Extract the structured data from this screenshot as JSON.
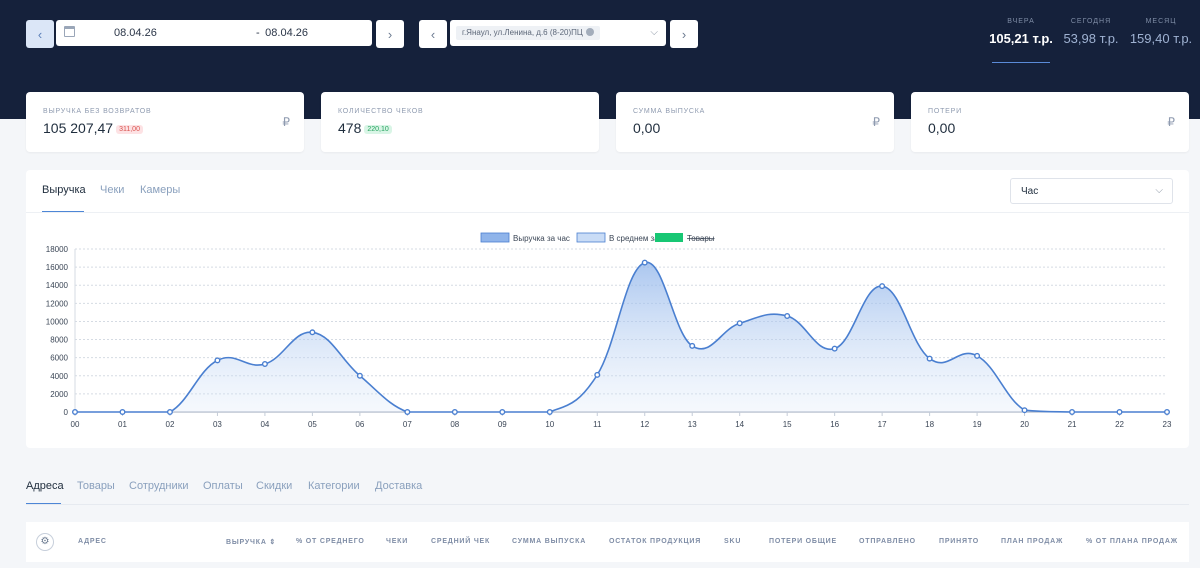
{
  "toolbar": {
    "date_from": "08.04.26",
    "date_sep": "-",
    "date_to": "08.04.26",
    "shop_chip": "г.Янаул, ул.Ленина, д.6 (8-20)ПЦ"
  },
  "stats": [
    {
      "label": "ВЧЕРА",
      "value": "105,21 т.р.",
      "selected": true
    },
    {
      "label": "СЕГОДНЯ",
      "value": "53,98 т.р."
    },
    {
      "label": "МЕСЯЦ",
      "value": "159,40 т.р."
    }
  ],
  "cards": [
    {
      "label": "ВЫРУЧКА БЕЗ ВОЗВРАТОВ",
      "value": "105 207,47",
      "badge": "311,00",
      "badge_color": "red",
      "currency": "₽"
    },
    {
      "label": "КОЛИЧЕСТВО ЧЕКОВ",
      "value": "478",
      "badge": "220,10",
      "badge_color": "green"
    },
    {
      "label": "СУММА ВЫПУСКА",
      "value": "0,00",
      "currency": "₽"
    },
    {
      "label": "ПОТЕРИ",
      "value": "0,00",
      "currency": "₽"
    }
  ],
  "chart_tabs": [
    "Выручка",
    "Чеки",
    "Камеры"
  ],
  "chart_tab_active": "Выручка",
  "period_select": "Час",
  "chart_data": {
    "type": "area",
    "categories": [
      "00",
      "01",
      "02",
      "03",
      "04",
      "05",
      "06",
      "07",
      "08",
      "09",
      "10",
      "11",
      "12",
      "13",
      "14",
      "15",
      "16",
      "17",
      "18",
      "19",
      "20",
      "21",
      "22",
      "23"
    ],
    "series": [
      {
        "name": "Выручка за час",
        "values": [
          0,
          0,
          0,
          5700,
          5300,
          8800,
          4000,
          0,
          0,
          0,
          0,
          4100,
          16500,
          7300,
          9800,
          10600,
          7000,
          13900,
          5900,
          6200,
          200,
          0,
          0,
          0
        ],
        "color": "#4a7fd0"
      }
    ],
    "legend": [
      {
        "name": "Выручка за час",
        "color": "#8fb4ea"
      },
      {
        "name": "В среднем за час",
        "color": "#c9dcf6"
      },
      {
        "name": "Товары",
        "color": "#18c774",
        "hidden": true
      }
    ],
    "legend_position": "top",
    "y_ticks": [
      "0",
      "2000",
      "4000",
      "6000",
      "8000",
      "10000",
      "12000",
      "14000",
      "16000",
      "18000"
    ],
    "ylim": [
      0,
      18000
    ],
    "grid": true
  },
  "table_tabs": [
    "Адреса",
    "Товары",
    "Сотрудники",
    "Оплаты",
    "Скидки",
    "Категории",
    "Доставка"
  ],
  "table_tab_active": "Адреса",
  "table_headers": [
    "АДРЕС",
    "ВЫРУЧКА ⇕",
    "% ОТ СРЕДНЕГО",
    "ЧЕКИ",
    "СРЕДНИЙ ЧЕК",
    "СУММА ВЫПУСКА",
    "ОСТАТОК ПРОДУКЦИЯ",
    "SKU",
    "ПОТЕРИ ОБЩИЕ",
    "ОТПРАВЛЕНО",
    "ПРИНЯТО",
    "ПЛАН ПРОДАЖ",
    "% ОТ ПЛАНА ПРОДАЖ"
  ]
}
